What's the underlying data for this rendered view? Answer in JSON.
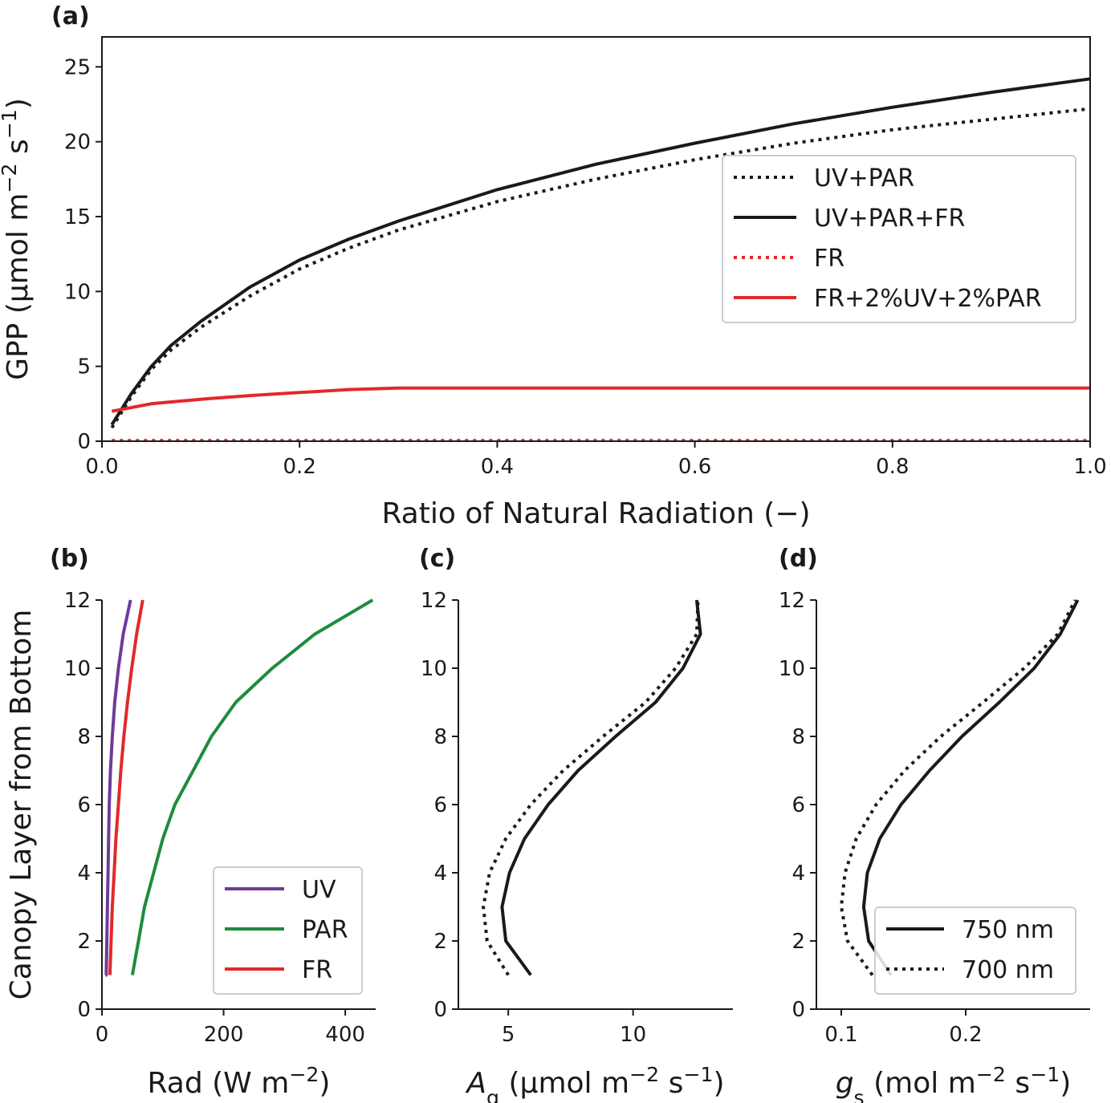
{
  "chart_data": [
    {
      "id": "a",
      "type": "line",
      "panel_label": "(a)",
      "xlabel": "Ratio of Natural Radiation (−)",
      "ylabel": "GPP (μmol m⁻² s⁻¹)",
      "xlim": [
        0,
        1.0
      ],
      "ylim": [
        0,
        27
      ],
      "xticks": [
        0.0,
        0.2,
        0.4,
        0.6,
        0.8,
        1.0
      ],
      "xtick_labels": [
        "0.0",
        "0.2",
        "0.4",
        "0.6",
        "0.8",
        "1.0"
      ],
      "yticks": [
        0,
        5,
        10,
        15,
        20,
        25
      ],
      "ytick_labels": [
        "0",
        "5",
        "10",
        "15",
        "20",
        "25"
      ],
      "legend_position": "right",
      "series": [
        {
          "name": "UV+PAR",
          "color": "#1a1a1a",
          "style": "dotted",
          "x": [
            0.01,
            0.03,
            0.05,
            0.07,
            0.1,
            0.15,
            0.2,
            0.25,
            0.3,
            0.4,
            0.5,
            0.6,
            0.7,
            0.8,
            0.9,
            1.0
          ],
          "y": [
            0.9,
            3.0,
            4.8,
            6.1,
            7.6,
            9.7,
            11.5,
            12.9,
            14.1,
            16.0,
            17.5,
            18.8,
            19.9,
            20.8,
            21.5,
            22.2
          ]
        },
        {
          "name": "UV+PAR+FR",
          "color": "#1a1a1a",
          "style": "solid",
          "x": [
            0.01,
            0.03,
            0.05,
            0.07,
            0.1,
            0.15,
            0.2,
            0.25,
            0.3,
            0.4,
            0.5,
            0.6,
            0.7,
            0.8,
            0.9,
            1.0
          ],
          "y": [
            1.1,
            3.2,
            5.0,
            6.4,
            8.0,
            10.3,
            12.1,
            13.5,
            14.7,
            16.8,
            18.5,
            19.9,
            21.2,
            22.3,
            23.3,
            24.2
          ]
        },
        {
          "name": "FR",
          "color": "#e3282b",
          "style": "dotted",
          "x": [
            0.01,
            0.2,
            0.4,
            0.6,
            0.8,
            1.0
          ],
          "y": [
            0.05,
            0.05,
            0.05,
            0.05,
            0.05,
            0.05
          ]
        },
        {
          "name": "FR+2%UV+2%PAR",
          "color": "#e3282b",
          "style": "solid",
          "x": [
            0.01,
            0.05,
            0.1,
            0.15,
            0.2,
            0.25,
            0.3,
            0.4,
            0.5,
            0.6,
            0.7,
            0.8,
            0.9,
            1.0
          ],
          "y": [
            2.0,
            2.5,
            2.8,
            3.05,
            3.25,
            3.45,
            3.55,
            3.55,
            3.55,
            3.55,
            3.55,
            3.55,
            3.55,
            3.55
          ]
        }
      ]
    },
    {
      "id": "b",
      "type": "line",
      "panel_label": "(b)",
      "xlabel": "Rad (W m⁻²)",
      "ylabel": "Canopy Layer from Bottom",
      "xlim": [
        0,
        450
      ],
      "ylim": [
        0,
        12
      ],
      "xticks": [
        0,
        200,
        400
      ],
      "xtick_labels": [
        "0",
        "200",
        "400"
      ],
      "yticks": [
        0,
        2,
        4,
        6,
        8,
        10,
        12
      ],
      "ytick_labels": [
        "0",
        "2",
        "4",
        "6",
        "8",
        "10",
        "12"
      ],
      "legend_position": "lower right",
      "series": [
        {
          "name": "UV",
          "color": "#6f3a9b",
          "style": "solid",
          "x": [
            6,
            7,
            8,
            9,
            10,
            11,
            12,
            14,
            17,
            21,
            27,
            35,
            47
          ],
          "y": [
            1,
            1,
            2,
            3,
            4,
            5,
            6,
            7,
            8,
            9,
            10,
            11,
            12
          ]
        },
        {
          "name": "PAR",
          "color": "#1e8c3c",
          "style": "solid",
          "x": [
            50,
            60,
            70,
            85,
            100,
            120,
            150,
            180,
            220,
            280,
            350,
            445
          ],
          "y": [
            1,
            2,
            3,
            4,
            5,
            6,
            7,
            8,
            9,
            10,
            11,
            12
          ]
        },
        {
          "name": "FR",
          "color": "#e3282b",
          "style": "solid",
          "x": [
            13,
            15,
            17,
            20,
            23,
            27,
            31,
            36,
            42,
            49,
            57,
            67
          ],
          "y": [
            1,
            2,
            3,
            4,
            5,
            6,
            7,
            8,
            9,
            10,
            11,
            12
          ]
        }
      ]
    },
    {
      "id": "c",
      "type": "line",
      "panel_label": "(c)",
      "xlabel": "A_g (μmol m⁻² s⁻¹)",
      "ylabel": "",
      "xlim": [
        3,
        14
      ],
      "ylim": [
        0,
        12
      ],
      "xticks": [
        5,
        10
      ],
      "xtick_labels": [
        "5",
        "10"
      ],
      "yticks": [
        0,
        2,
        4,
        6,
        8,
        10,
        12
      ],
      "ytick_labels": [
        "0",
        "2",
        "4",
        "6",
        "8",
        "10",
        "12"
      ],
      "series": [
        {
          "name": "750 nm",
          "color": "#1a1a1a",
          "style": "solid",
          "x": [
            5.9,
            4.9,
            4.75,
            5.05,
            5.65,
            6.6,
            7.8,
            9.3,
            10.9,
            12.0,
            12.7,
            12.55
          ],
          "y": [
            1,
            2,
            3,
            4,
            5,
            6,
            7,
            8,
            9,
            10,
            11,
            12
          ]
        },
        {
          "name": "700 nm",
          "color": "#1a1a1a",
          "style": "dotted",
          "x": [
            5.0,
            4.15,
            4.0,
            4.25,
            4.9,
            5.9,
            7.2,
            8.8,
            10.5,
            11.7,
            12.55,
            12.6
          ],
          "y": [
            1,
            2,
            3,
            4,
            5,
            6,
            7,
            8,
            9,
            10,
            11,
            12
          ]
        }
      ]
    },
    {
      "id": "d",
      "type": "line",
      "panel_label": "(d)",
      "xlabel": "g_s (mol m⁻² s⁻¹)",
      "ylabel": "",
      "xlim": [
        0.08,
        0.3
      ],
      "ylim": [
        0,
        12
      ],
      "xticks": [
        0.1,
        0.2
      ],
      "xtick_labels": [
        "0.1",
        "0.2"
      ],
      "yticks": [
        0,
        2,
        4,
        6,
        8,
        10,
        12
      ],
      "ytick_labels": [
        "0",
        "2",
        "4",
        "6",
        "8",
        "10",
        "12"
      ],
      "legend_position": "lower right",
      "series": [
        {
          "name": "750 nm",
          "color": "#1a1a1a",
          "style": "solid",
          "x": [
            0.14,
            0.122,
            0.118,
            0.121,
            0.131,
            0.148,
            0.171,
            0.197,
            0.227,
            0.255,
            0.276,
            0.29
          ],
          "y": [
            1,
            2,
            3,
            4,
            5,
            6,
            7,
            8,
            9,
            10,
            11,
            12
          ]
        },
        {
          "name": "700 nm",
          "color": "#1a1a1a",
          "style": "dotted",
          "x": [
            0.125,
            0.105,
            0.1,
            0.103,
            0.112,
            0.128,
            0.151,
            0.18,
            0.214,
            0.247,
            0.274,
            0.288
          ],
          "y": [
            1,
            2,
            3,
            4,
            5,
            6,
            7,
            8,
            9,
            10,
            11,
            12
          ]
        }
      ]
    }
  ]
}
